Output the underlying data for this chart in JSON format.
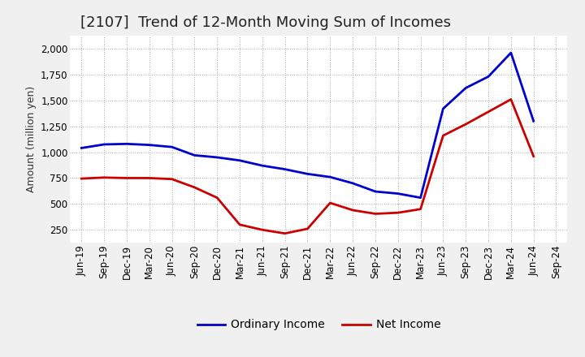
{
  "title": "[2107]  Trend of 12-Month Moving Sum of Incomes",
  "ylabel": "Amount (million yen)",
  "ylim": [
    125,
    2125
  ],
  "yticks": [
    250,
    500,
    750,
    1000,
    1250,
    1500,
    1750,
    2000
  ],
  "bg_color": "#f0f0f0",
  "plot_bg_color": "#ffffff",
  "grid_color": "#aaaaaa",
  "ordinary_income_color": "#0000cc",
  "net_income_color": "#cc0000",
  "x_labels": [
    "Jun-19",
    "Sep-19",
    "Dec-19",
    "Mar-20",
    "Jun-20",
    "Sep-20",
    "Dec-20",
    "Mar-21",
    "Jun-21",
    "Sep-21",
    "Dec-21",
    "Mar-22",
    "Jun-22",
    "Sep-22",
    "Dec-22",
    "Mar-23",
    "Jun-23",
    "Sep-23",
    "Dec-23",
    "Mar-24",
    "Jun-24",
    "Sep-24"
  ],
  "ordinary_income": [
    1040,
    1075,
    1080,
    1070,
    1050,
    970,
    950,
    920,
    870,
    835,
    790,
    760,
    700,
    620,
    600,
    560,
    1420,
    1620,
    1730,
    1960,
    1300,
    null
  ],
  "net_income": [
    745,
    755,
    750,
    750,
    740,
    660,
    560,
    300,
    250,
    215,
    260,
    510,
    440,
    405,
    415,
    450,
    1160,
    1270,
    1390,
    1510,
    960,
    null
  ],
  "legend_labels": [
    "Ordinary Income",
    "Net Income"
  ],
  "line_width": 2.0,
  "title_fontsize": 13,
  "label_fontsize": 9,
  "tick_fontsize": 8.5,
  "legend_fontsize": 10
}
